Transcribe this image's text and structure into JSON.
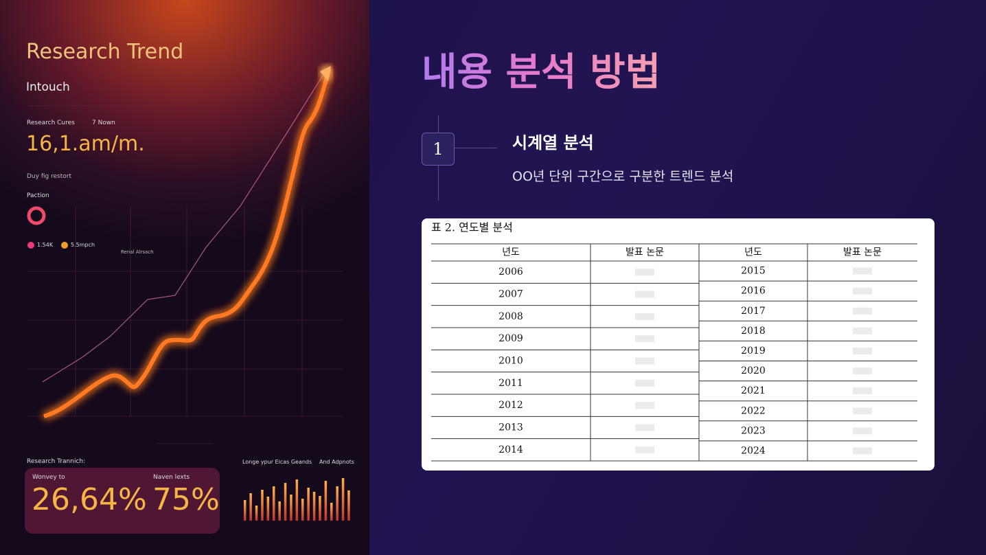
{
  "left_panel": {
    "title": "Research Trend",
    "subtitle": "Intouch",
    "stat_label": "Research Cures",
    "stat_tag": "7 Nown",
    "stat_value": "16,1.am/m.",
    "note": "Duy fig restort",
    "section": "Paction",
    "legend": [
      "1.54K",
      "5.5mpch"
    ],
    "chart_label": "Renal Alrsach",
    "bottom_label": "Research Trannich:",
    "metrics": [
      {
        "label": "Wonvey to",
        "value": "26,64%"
      },
      {
        "label": "Naven lexts",
        "value": "75%"
      }
    ],
    "bar_titles": [
      "Longe ypur Eicas Geands",
      "And Adpnots"
    ]
  },
  "slide": {
    "title": "내용 분석 방법",
    "step": {
      "number": "1",
      "title": "시계열 분석",
      "description": "OO년 단위 구간으로 구분한 트렌드 분석"
    }
  },
  "table": {
    "caption": "표 2. 연도별 분석",
    "headers": [
      "년도",
      "발표 논문",
      "년도",
      "발표 논문"
    ],
    "left_years": [
      "2006",
      "2007",
      "2008",
      "2009",
      "2010",
      "2011",
      "2012",
      "2013",
      "2014"
    ],
    "right_years": [
      "2015",
      "2016",
      "2017",
      "2018",
      "2019",
      "2020",
      "2021",
      "2022",
      "2023",
      "2024"
    ]
  }
}
